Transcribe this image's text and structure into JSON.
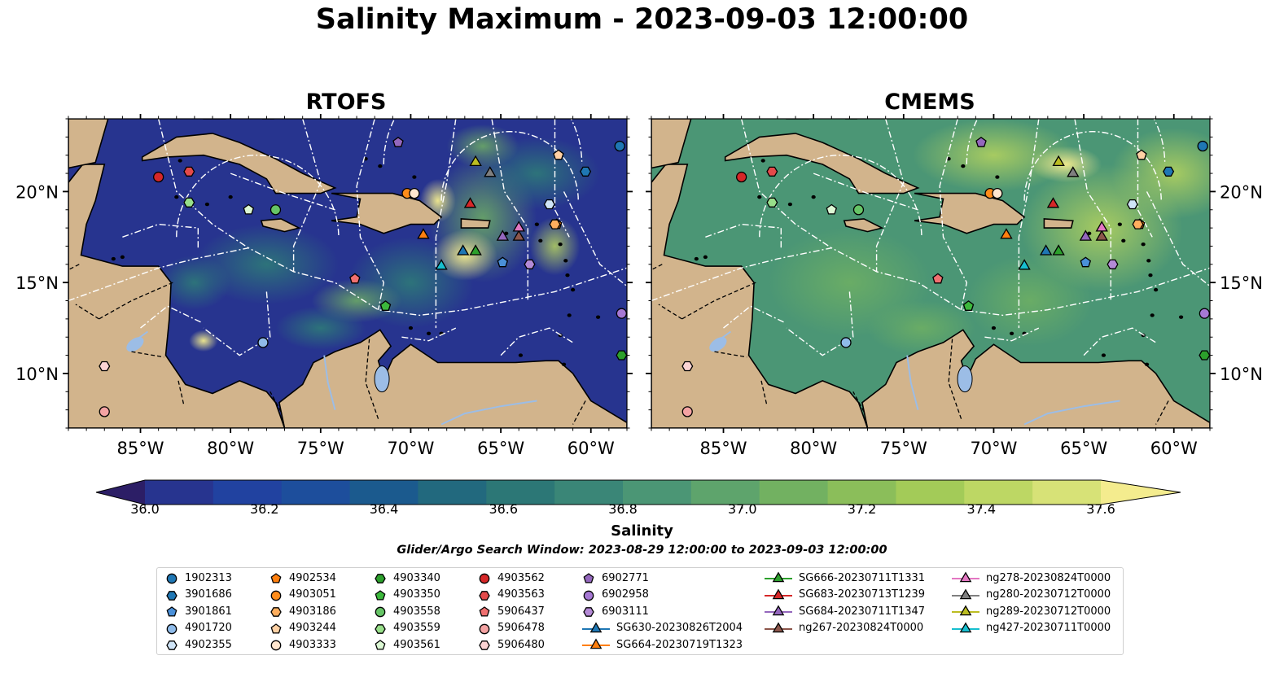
{
  "title": "Salinity Maximum - 2023-09-03 12:00:00",
  "panels": [
    {
      "title": "RTOFS"
    },
    {
      "title": "CMEMS"
    }
  ],
  "colorbar": {
    "label": "Salinity",
    "ticks": [
      "36.0",
      "36.2",
      "36.4",
      "36.6",
      "36.8",
      "37.0",
      "37.2",
      "37.4",
      "37.6"
    ],
    "colors": [
      "#2c1e66",
      "#27348f",
      "#2142a0",
      "#1d4e9c",
      "#1b5a8e",
      "#22697e",
      "#2c7776",
      "#3a8677",
      "#4b9675",
      "#5ea46c",
      "#72b161",
      "#8bbe5a",
      "#a3cb58",
      "#bdd764",
      "#d7e277",
      "#f4ec8e"
    ]
  },
  "search_window": "Glider/Argo Search Window: 2023-08-29 12:00:00 to 2023-09-03 12:00:00",
  "chart_data": {
    "type": "map",
    "extent": {
      "lon": [
        -89,
        -58
      ],
      "lat": [
        7,
        24
      ]
    },
    "x_ticks": [
      "85°W",
      "80°W",
      "75°W",
      "70°W",
      "65°W",
      "60°W"
    ],
    "y_ticks": [
      "20°N",
      "15°N",
      "10°N"
    ],
    "colorbar_range": [
      36.0,
      37.6
    ],
    "series": [
      {
        "name": "1902313",
        "marker": "circle",
        "color": "#1f77b4",
        "lon": -58.4,
        "lat": 22.5
      },
      {
        "name": "3901686",
        "marker": "hexagon",
        "color": "#1f77b4",
        "lon": -60.3,
        "lat": 21.1
      },
      {
        "name": "3901861",
        "marker": "pentagon",
        "color": "#4a90d9",
        "lon": -64.9,
        "lat": 16.1
      },
      {
        "name": "4901720",
        "marker": "circle",
        "color": "#8fbbe9",
        "lon": -78.2,
        "lat": 11.7
      },
      {
        "name": "4902355",
        "marker": "hexagon",
        "color": "#cfe4f7",
        "lon": -62.3,
        "lat": 19.3
      },
      {
        "name": "4902534",
        "marker": "pentagon",
        "color": "#ff7f0e",
        "lon": -61.9,
        "lat": 18.2
      },
      {
        "name": "4903051",
        "marker": "circle",
        "color": "#ff8c1a",
        "lon": -70.2,
        "lat": 19.9
      },
      {
        "name": "4903186",
        "marker": "hexagon",
        "color": "#ffae5e",
        "lon": -62.0,
        "lat": 18.2
      },
      {
        "name": "4903244",
        "marker": "pentagon",
        "color": "#ffd1a4",
        "lon": -61.8,
        "lat": 22.0
      },
      {
        "name": "4903333",
        "marker": "circle",
        "color": "#ffe6cf",
        "lon": -69.8,
        "lat": 19.9
      },
      {
        "name": "4903340",
        "marker": "hexagon",
        "color": "#2ca02c",
        "lon": -58.3,
        "lat": 11.0
      },
      {
        "name": "4903350",
        "marker": "pentagon",
        "color": "#3cb83c",
        "lon": -71.4,
        "lat": 13.7
      },
      {
        "name": "4903558",
        "marker": "circle",
        "color": "#66c466",
        "lon": -77.5,
        "lat": 19.0
      },
      {
        "name": "4903559",
        "marker": "hexagon",
        "color": "#98df8a",
        "lon": -82.3,
        "lat": 19.4
      },
      {
        "name": "4903561",
        "marker": "pentagon",
        "color": "#dcf8d4",
        "lon": -79.0,
        "lat": 19.0
      },
      {
        "name": "4903562",
        "marker": "circle",
        "color": "#d62728",
        "lon": -84.0,
        "lat": 20.8
      },
      {
        "name": "4903563",
        "marker": "hexagon",
        "color": "#e34a4a",
        "lon": -82.3,
        "lat": 21.1
      },
      {
        "name": "5906437",
        "marker": "pentagon",
        "color": "#f07070",
        "lon": -73.1,
        "lat": 15.2
      },
      {
        "name": "5906478",
        "marker": "circle",
        "color": "#f4a3a3",
        "lon": -87.0,
        "lat": 7.9
      },
      {
        "name": "5906480",
        "marker": "hexagon",
        "color": "#fbd3d3",
        "lon": -87.0,
        "lat": 10.4
      },
      {
        "name": "6902771",
        "marker": "pentagon",
        "color": "#9467bd",
        "lon": -70.7,
        "lat": 22.7
      },
      {
        "name": "6902958",
        "marker": "circle",
        "color": "#a678d4",
        "lon": -58.3,
        "lat": 13.3
      },
      {
        "name": "6903111",
        "marker": "hexagon",
        "color": "#b48ad6",
        "lon": -63.4,
        "lat": 16.0
      },
      {
        "name": "SG630-20230826T2004",
        "marker": "triangle",
        "color": "#1f77b4",
        "lon": -67.1,
        "lat": 16.7
      },
      {
        "name": "SG664-20230719T1323",
        "marker": "triangle",
        "color": "#ff7f0e",
        "lon": -69.3,
        "lat": 17.6
      },
      {
        "name": "SG666-20230711T1331",
        "marker": "triangle",
        "color": "#2ca02c",
        "lon": -66.4,
        "lat": 16.7
      },
      {
        "name": "SG683-20230713T1239",
        "marker": "triangle",
        "color": "#d62728",
        "lon": -66.7,
        "lat": 19.3
      },
      {
        "name": "SG684-20230711T1347",
        "marker": "triangle",
        "color": "#9467bd",
        "lon": -64.9,
        "lat": 17.5
      },
      {
        "name": "ng267-20230824T0000",
        "marker": "triangle",
        "color": "#8c564b",
        "lon": -64.0,
        "lat": 17.5
      },
      {
        "name": "ng278-20230824T0000",
        "marker": "triangle",
        "color": "#e377c2",
        "lon": -64.0,
        "lat": 18.0
      },
      {
        "name": "ng280-20230712T0000",
        "marker": "triangle",
        "color": "#7f7f7f",
        "lon": -65.6,
        "lat": 21.0
      },
      {
        "name": "ng289-20230712T0000",
        "marker": "triangle",
        "color": "#bcbd22",
        "lon": -66.4,
        "lat": 21.6
      },
      {
        "name": "ng427-20230711T0000",
        "marker": "triangle",
        "color": "#17becf",
        "lon": -68.3,
        "lat": 15.9
      }
    ]
  },
  "legend": {
    "columns": [
      [
        "1902313",
        "3901686",
        "3901861",
        "4901720",
        "4902355"
      ],
      [
        "4902534",
        "4903051",
        "4903186",
        "4903244",
        "4903333"
      ],
      [
        "4903340",
        "4903350",
        "4903558",
        "4903559",
        "4903561"
      ],
      [
        "4903562",
        "4903563",
        "5906437",
        "5906478",
        "5906480"
      ],
      [
        "6902771",
        "6902958",
        "6903111",
        "SG630-20230826T2004",
        "SG664-20230719T1323"
      ],
      [
        "SG666-20230711T1331",
        "SG683-20230713T1239",
        "SG684-20230711T1347",
        "ng267-20230824T0000"
      ],
      [
        "ng278-20230824T0000",
        "ng280-20230712T0000",
        "ng289-20230712T0000",
        "ng427-20230711T0000"
      ]
    ]
  }
}
